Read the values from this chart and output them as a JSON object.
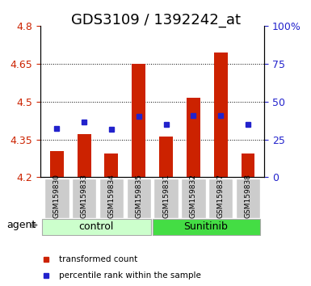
{
  "title": "GDS3109 / 1392242_at",
  "samples": [
    "GSM159830",
    "GSM159833",
    "GSM159834",
    "GSM159835",
    "GSM159831",
    "GSM159832",
    "GSM159837",
    "GSM159838"
  ],
  "red_values": [
    4.305,
    4.37,
    4.295,
    4.65,
    4.36,
    4.515,
    4.695,
    4.295
  ],
  "blue_values": [
    4.395,
    4.42,
    4.39,
    4.44,
    4.41,
    4.445,
    4.445,
    4.41
  ],
  "ylim": [
    4.2,
    4.8
  ],
  "yticks_left": [
    4.2,
    4.35,
    4.5,
    4.65,
    4.8
  ],
  "yticks_left_labels": [
    "4.2",
    "4.35",
    "4.5",
    "4.65",
    "4.8"
  ],
  "yticks_right": [
    0,
    25,
    50,
    75,
    100
  ],
  "yticks_right_labels": [
    "0",
    "25",
    "50",
    "75",
    "100%"
  ],
  "grid_values": [
    4.35,
    4.5,
    4.65
  ],
  "bar_bottom": 4.2,
  "bar_width": 0.5,
  "red_color": "#cc2200",
  "blue_color": "#2222cc",
  "control_color": "#ccffcc",
  "sunitinib_color": "#44dd44",
  "control_label": "control",
  "sunitinib_label": "Sunitinib",
  "agent_label": "agent",
  "legend_red": "transformed count",
  "legend_blue": "percentile rank within the sample",
  "title_fontsize": 13,
  "tick_fontsize": 9,
  "label_fontsize": 9,
  "sample_fontsize": 6.5,
  "group_fontsize": 9,
  "legend_fontsize": 7.5
}
